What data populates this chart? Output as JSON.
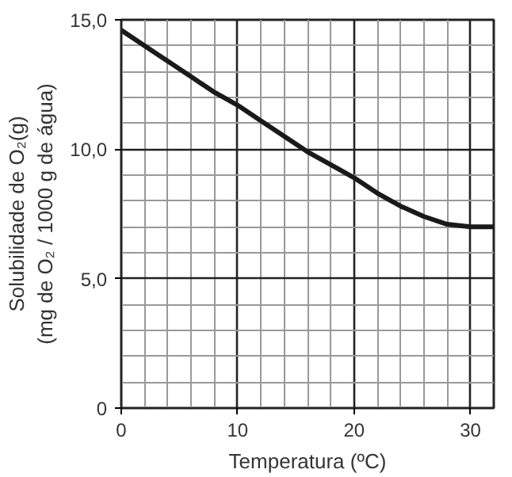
{
  "chart_data": {
    "type": "line",
    "xlabel": "Temperatura (ºC)",
    "ylabel": "Solubilidade de O₂(g)\n(mg de O₂ / 1000 g de água)",
    "x": [
      0,
      2,
      4,
      6,
      8,
      10,
      12,
      14,
      16,
      18,
      20,
      22,
      24,
      26,
      28,
      30,
      32
    ],
    "series": [
      {
        "color": "#1a1a1a",
        "values": [
          14.6,
          14.0,
          13.4,
          12.8,
          12.2,
          11.7,
          11.1,
          10.5,
          9.9,
          9.4,
          8.9,
          8.3,
          7.8,
          7.4,
          7.1,
          7.0,
          7.0
        ]
      }
    ],
    "xlim": [
      0,
      32
    ],
    "ylim": [
      0,
      15
    ],
    "xticks": [
      0,
      10,
      20,
      30
    ],
    "yticks": [
      {
        "value": 0,
        "label": "0"
      },
      {
        "value": 5,
        "label": "5,0"
      },
      {
        "value": 10,
        "label": "10,0"
      },
      {
        "value": 15,
        "label": "15,0"
      }
    ],
    "grid": true,
    "marker": "none",
    "line_style": "solid"
  }
}
